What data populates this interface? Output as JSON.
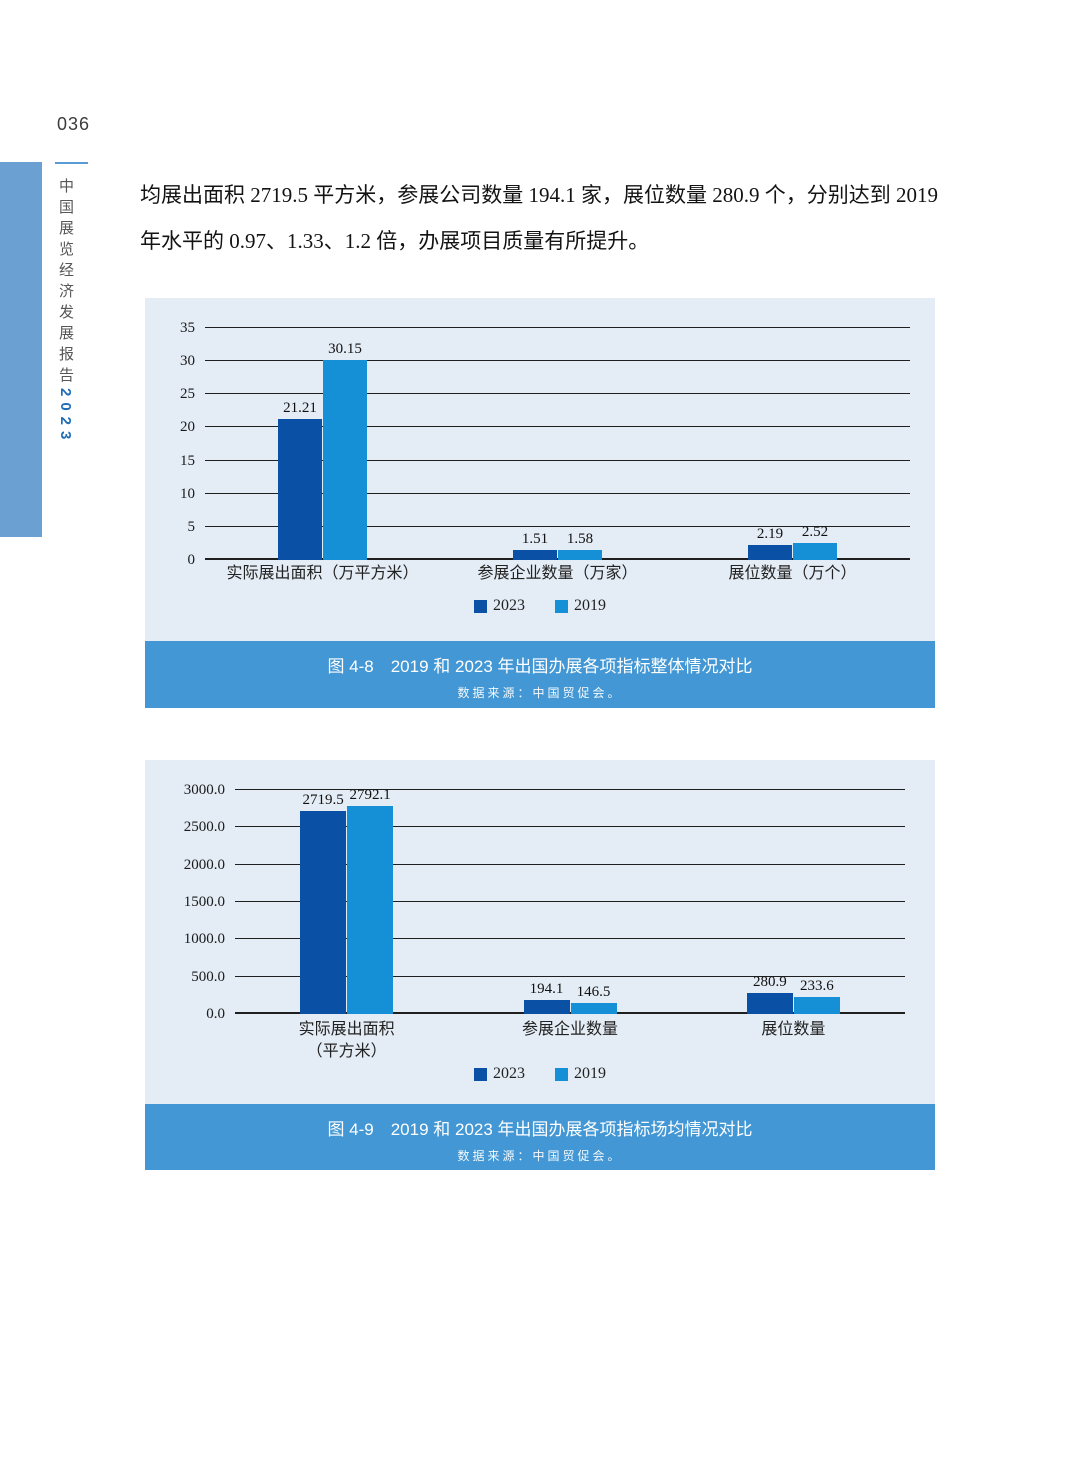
{
  "page": {
    "number": "036",
    "sidebar_title": "中国展览经济发展报告",
    "sidebar_year": "2023"
  },
  "paragraph": {
    "line1": "均展出面积 2719.5 平方米，参展公司数量 194.1 家，展位数量 280.9 个，分别达到 2019",
    "line2": "年水平的 0.97、1.33、1.2 倍，办展项目质量有所提升。"
  },
  "chart_data": [
    {
      "type": "bar",
      "title": "图 4-8　2019 和 2023 年出国办展各项指标整体情况对比",
      "source": "数据来源：中国贸促会。",
      "categories": [
        "实际展出面积（万平方米）",
        "参展企业数量（万家）",
        "展位数量（万个）"
      ],
      "series": [
        {
          "name": "2023",
          "color": "#0a50a4",
          "values": [
            21.21,
            1.51,
            2.19
          ],
          "labels": [
            "21.21",
            "1.51",
            "2.19"
          ]
        },
        {
          "name": "2019",
          "color": "#1590d6",
          "values": [
            30.15,
            1.58,
            2.52
          ],
          "labels": [
            "30.15",
            "1.58",
            "2.52"
          ]
        }
      ],
      "ylim": [
        0,
        35
      ],
      "yticks": [
        "0",
        "5",
        "10",
        "15",
        "20",
        "25",
        "30",
        "35"
      ],
      "grid": true,
      "legend_position": "bottom"
    },
    {
      "type": "bar",
      "title": "图 4-9　2019 和 2023 年出国办展各项指标场均情况对比",
      "source": "数据来源：中国贸促会。",
      "categories": [
        "实际展出面积\n（平方米）",
        "参展企业数量",
        "展位数量"
      ],
      "series": [
        {
          "name": "2023",
          "color": "#0a50a4",
          "values": [
            2719.5,
            194.1,
            280.9
          ],
          "labels": [
            "2719.5",
            "194.1",
            "280.9"
          ]
        },
        {
          "name": "2019",
          "color": "#1590d6",
          "values": [
            2792.1,
            146.5,
            233.6
          ],
          "labels": [
            "2792.1",
            "146.5",
            "233.6"
          ]
        }
      ],
      "ylim": [
        0,
        3000
      ],
      "yticks": [
        "0.0",
        "500.0",
        "1000.0",
        "1500.0",
        "2000.0",
        "2500.0",
        "3000.0"
      ],
      "grid": true,
      "legend_position": "bottom"
    }
  ],
  "colors": {
    "bar_2023": "#0a50a4",
    "bar_2019": "#1590d6",
    "chart_panel_bg": "#e4ecf5",
    "caption_bar_bg": "#4297d4",
    "sidebar_strip": "#6ba0d2",
    "sidebar_year": "#1f6db6",
    "page_underline": "#5b9bd5",
    "gridline": "#1f1f1f"
  }
}
